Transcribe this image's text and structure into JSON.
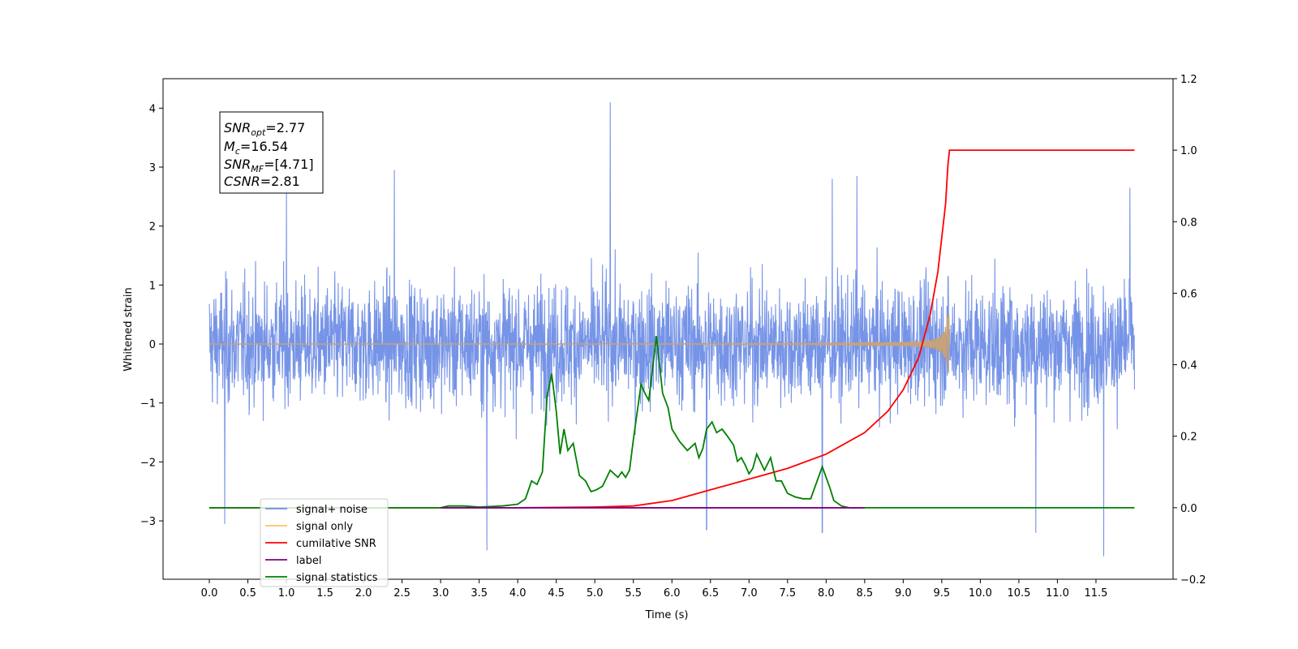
{
  "chart_data": {
    "type": "line",
    "xlabel": "Time (s)",
    "ylabel_left": "Whitened strain",
    "ylabel_right": "",
    "xlim": [
      -0.6,
      12.5
    ],
    "ylim_left": [
      -3.99,
      4.5
    ],
    "ylim_right": [
      -0.2,
      1.2
    ],
    "x_ticks": [
      "0.0",
      "0.5",
      "1.0",
      "1.5",
      "2.0",
      "2.5",
      "3.0",
      "3.5",
      "4.0",
      "4.5",
      "5.0",
      "5.5",
      "6.0",
      "6.5",
      "7.0",
      "7.5",
      "8.0",
      "8.5",
      "9.0",
      "9.5",
      "10.0",
      "10.5",
      "11.0",
      "11.5"
    ],
    "y_ticks_left": [
      "4",
      "3",
      "2",
      "1",
      "0",
      "−1",
      "−2",
      "−3"
    ],
    "y_ticks_right": [
      "1.2",
      "1.0",
      "0.8",
      "0.6",
      "0.4",
      "0.2",
      "0.0",
      "−0.2"
    ],
    "stats_box": {
      "snr_opt": "=2.77",
      "mc": "=16.54",
      "snr_mf": "=[4.71]",
      "csnr": "=2.81"
    },
    "legend": {
      "placement": "lower-left",
      "items": [
        {
          "label": "signal+ noise",
          "color": "#6f8ee6"
        },
        {
          "label": "signal only",
          "color": "#ffc069"
        },
        {
          "label": "cumilative SNR",
          "color": "#ff0000"
        },
        {
          "label": "label",
          "color": "#800080"
        },
        {
          "label": "signal statistics",
          "color": "#008000"
        }
      ]
    },
    "series": [
      {
        "name": "signal+ noise",
        "axis": "left",
        "color": "#6f8ee6",
        "x_range": [
          0.0,
          12.0
        ],
        "envelope_typical": [
          -1.7,
          1.8
        ],
        "spikes": [
          {
            "x": 1.0,
            "y": 2.6
          },
          {
            "x": 2.4,
            "y": 2.95
          },
          {
            "x": 5.2,
            "y": 4.1
          },
          {
            "x": 8.08,
            "y": 2.8
          },
          {
            "x": 8.4,
            "y": 2.85
          },
          {
            "x": 11.94,
            "y": 2.65
          },
          {
            "x": 0.2,
            "y": -3.05
          },
          {
            "x": 3.6,
            "y": -3.5
          },
          {
            "x": 6.45,
            "y": -3.15
          },
          {
            "x": 7.95,
            "y": -3.2
          },
          {
            "x": 10.72,
            "y": -3.2
          },
          {
            "x": 11.6,
            "y": -3.6
          }
        ]
      },
      {
        "name": "signal only",
        "axis": "left",
        "color": "#c8a27a",
        "x_range": [
          0.0,
          9.6
        ],
        "merger_time": 9.6,
        "peak_amplitude": 0.5
      },
      {
        "name": "cumilative SNR",
        "axis": "right",
        "color": "#ff0000",
        "x": [
          0.0,
          4.0,
          5.0,
          5.5,
          6.0,
          6.5,
          7.0,
          7.5,
          8.0,
          8.5,
          8.8,
          9.0,
          9.2,
          9.35,
          9.45,
          9.55,
          9.58,
          9.6,
          10.0,
          12.0
        ],
        "y": [
          0.0,
          0.0,
          0.002,
          0.005,
          0.02,
          0.05,
          0.08,
          0.11,
          0.15,
          0.21,
          0.27,
          0.33,
          0.42,
          0.54,
          0.66,
          0.85,
          0.96,
          1.0,
          1.0,
          1.0
        ]
      },
      {
        "name": "label",
        "axis": "right",
        "color": "#800080",
        "x": [
          3.0,
          8.5
        ],
        "y": [
          0.0,
          0.0
        ]
      },
      {
        "name": "signal statistics",
        "axis": "right",
        "color": "#008000",
        "x": [
          0.0,
          3.0,
          3.1,
          3.3,
          3.5,
          3.8,
          4.0,
          4.1,
          4.18,
          4.25,
          4.32,
          4.38,
          4.44,
          4.5,
          4.55,
          4.6,
          4.65,
          4.72,
          4.8,
          4.88,
          4.95,
          5.02,
          5.1,
          5.2,
          5.3,
          5.35,
          5.4,
          5.45,
          5.5,
          5.6,
          5.65,
          5.7,
          5.8,
          5.88,
          5.95,
          6.0,
          6.1,
          6.2,
          6.3,
          6.35,
          6.4,
          6.45,
          6.52,
          6.58,
          6.65,
          6.72,
          6.8,
          6.85,
          6.9,
          6.95,
          7.0,
          7.05,
          7.1,
          7.2,
          7.28,
          7.35,
          7.42,
          7.5,
          7.6,
          7.7,
          7.8,
          7.95,
          8.0,
          8.05,
          8.1,
          8.2,
          8.3,
          8.4,
          8.5,
          12.0
        ],
        "y": [
          0.0,
          0.0,
          0.005,
          0.005,
          0.002,
          0.005,
          0.01,
          0.025,
          0.075,
          0.065,
          0.1,
          0.31,
          0.375,
          0.27,
          0.15,
          0.22,
          0.16,
          0.18,
          0.09,
          0.075,
          0.045,
          0.05,
          0.06,
          0.105,
          0.085,
          0.1,
          0.085,
          0.105,
          0.19,
          0.345,
          0.32,
          0.3,
          0.48,
          0.32,
          0.28,
          0.22,
          0.185,
          0.16,
          0.18,
          0.14,
          0.165,
          0.22,
          0.24,
          0.21,
          0.22,
          0.2,
          0.175,
          0.13,
          0.14,
          0.12,
          0.095,
          0.11,
          0.15,
          0.105,
          0.14,
          0.075,
          0.075,
          0.04,
          0.03,
          0.025,
          0.025,
          0.115,
          0.085,
          0.055,
          0.02,
          0.005,
          0.0,
          0.0,
          0.0,
          0.0
        ]
      }
    ]
  }
}
